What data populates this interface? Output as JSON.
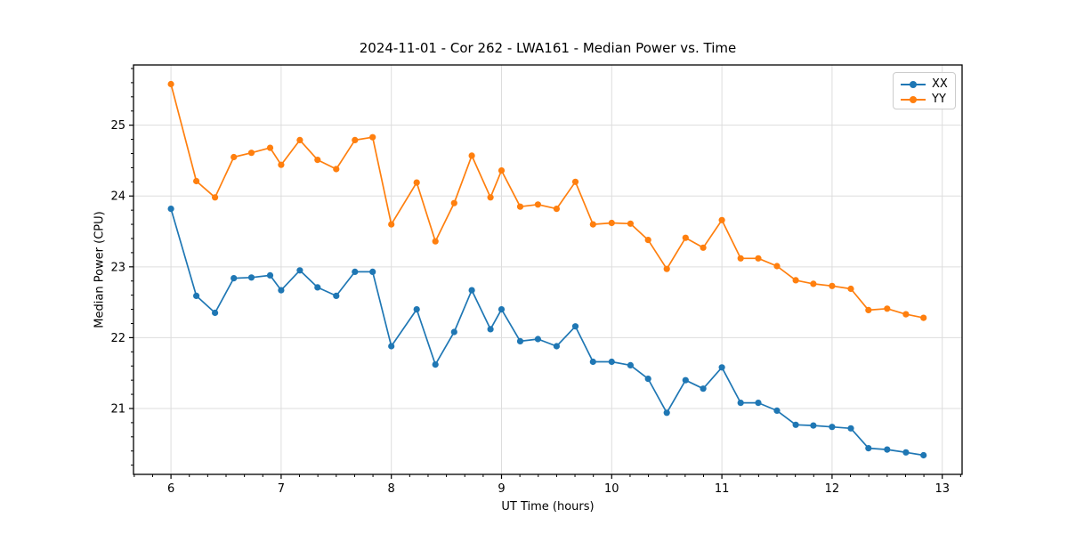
{
  "chart_data": {
    "type": "line",
    "title": "2024-11-01 - Cor 262 - LWA161 - Median Power vs. Time",
    "xlabel": "UT Time (hours)",
    "ylabel": "Median Power (CPU)",
    "xlim": [
      5.66,
      13.18
    ],
    "ylim": [
      20.07,
      25.85
    ],
    "x_ticks": [
      6,
      7,
      8,
      9,
      10,
      11,
      12,
      13
    ],
    "y_ticks": [
      21,
      22,
      23,
      24,
      25
    ],
    "x_minor_step": 0.166667,
    "y_minor_step": 0.2,
    "grid": true,
    "grid_color": "#dddddd",
    "spine_color": "#000000",
    "legend_position": "upper right",
    "x": [
      6.0,
      6.23,
      6.4,
      6.57,
      6.73,
      6.9,
      7.0,
      7.17,
      7.33,
      7.5,
      7.67,
      7.83,
      8.0,
      8.23,
      8.4,
      8.57,
      8.73,
      8.9,
      9.0,
      9.17,
      9.33,
      9.5,
      9.67,
      9.83,
      10.0,
      10.17,
      10.33,
      10.5,
      10.67,
      10.83,
      11.0,
      11.17,
      11.33,
      11.5,
      11.67,
      11.83,
      12.0,
      12.17,
      12.33,
      12.5,
      12.67,
      12.83
    ],
    "series": [
      {
        "name": "XX",
        "color": "#1f77b4",
        "values": [
          23.82,
          22.59,
          22.35,
          22.84,
          22.85,
          22.88,
          22.67,
          22.95,
          22.71,
          22.59,
          22.93,
          22.93,
          21.88,
          22.4,
          21.62,
          22.08,
          22.67,
          22.12,
          22.4,
          21.95,
          21.98,
          21.88,
          22.16,
          21.66,
          21.66,
          21.61,
          21.42,
          20.94,
          21.4,
          21.28,
          21.58,
          21.08,
          21.08,
          20.97,
          20.77,
          20.76,
          20.74,
          20.72,
          20.44,
          20.42,
          20.38,
          20.34
        ]
      },
      {
        "name": "YY",
        "color": "#ff7f0e",
        "values": [
          25.58,
          24.21,
          23.98,
          24.55,
          24.61,
          24.68,
          24.44,
          24.79,
          24.51,
          24.38,
          24.79,
          24.83,
          23.6,
          24.19,
          23.36,
          23.9,
          24.57,
          23.98,
          24.36,
          23.85,
          23.88,
          23.82,
          24.2,
          23.6,
          23.62,
          23.61,
          23.38,
          22.97,
          23.41,
          23.27,
          23.66,
          23.12,
          23.12,
          23.01,
          22.81,
          22.76,
          22.73,
          22.69,
          22.39,
          22.41,
          22.33,
          22.28
        ]
      }
    ]
  }
}
